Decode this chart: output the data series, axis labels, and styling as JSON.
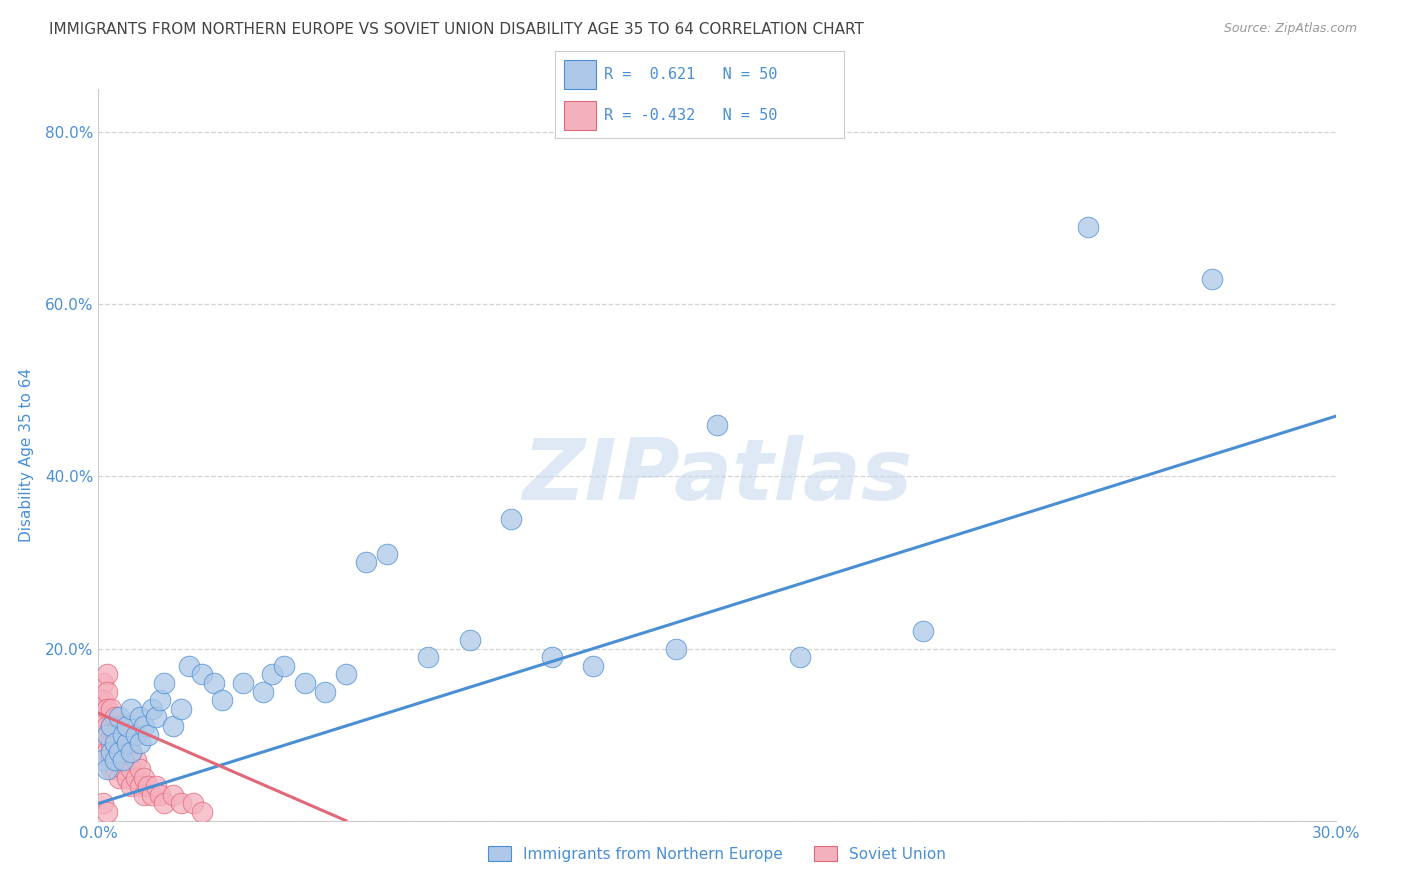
{
  "title": "IMMIGRANTS FROM NORTHERN EUROPE VS SOVIET UNION DISABILITY AGE 35 TO 64 CORRELATION CHART",
  "source": "Source: ZipAtlas.com",
  "ylabel": "Disability Age 35 to 64",
  "xlim": [
    0.0,
    0.3
  ],
  "ylim": [
    0.0,
    0.85
  ],
  "x_ticks": [
    0.0,
    0.05,
    0.1,
    0.15,
    0.2,
    0.25,
    0.3
  ],
  "y_ticks": [
    0.0,
    0.2,
    0.4,
    0.6,
    0.8
  ],
  "r_blue": 0.621,
  "n_blue": 50,
  "r_pink": -0.432,
  "n_pink": 50,
  "blue_color": "#adc8e8",
  "pink_color": "#f5b0be",
  "blue_line_color": "#4a8fd4",
  "pink_line_color": "#e06878",
  "title_color": "#444444",
  "axis_label_color": "#4a8fd4",
  "tick_color": "#4a8fd4",
  "grid_color": "#d0d0d0",
  "watermark": "ZIPatlas",
  "blue_line_x0": 0.0,
  "blue_line_y0": 0.02,
  "blue_line_x1": 0.3,
  "blue_line_y1": 0.47,
  "pink_line_x0": 0.0,
  "pink_line_y0": 0.125,
  "pink_line_x1": 0.06,
  "pink_line_y1": 0.0,
  "blue_scatter_x": [
    0.001,
    0.002,
    0.002,
    0.003,
    0.003,
    0.004,
    0.004,
    0.005,
    0.005,
    0.006,
    0.006,
    0.007,
    0.007,
    0.008,
    0.008,
    0.009,
    0.01,
    0.01,
    0.011,
    0.012,
    0.013,
    0.014,
    0.015,
    0.016,
    0.018,
    0.02,
    0.022,
    0.025,
    0.028,
    0.03,
    0.035,
    0.04,
    0.042,
    0.045,
    0.05,
    0.055,
    0.06,
    0.065,
    0.07,
    0.08,
    0.09,
    0.1,
    0.11,
    0.12,
    0.14,
    0.15,
    0.17,
    0.2,
    0.24,
    0.27
  ],
  "blue_scatter_y": [
    0.07,
    0.06,
    0.1,
    0.08,
    0.11,
    0.07,
    0.09,
    0.08,
    0.12,
    0.07,
    0.1,
    0.09,
    0.11,
    0.08,
    0.13,
    0.1,
    0.09,
    0.12,
    0.11,
    0.1,
    0.13,
    0.12,
    0.14,
    0.16,
    0.11,
    0.13,
    0.18,
    0.17,
    0.16,
    0.14,
    0.16,
    0.15,
    0.17,
    0.18,
    0.16,
    0.15,
    0.17,
    0.3,
    0.31,
    0.19,
    0.21,
    0.35,
    0.19,
    0.18,
    0.2,
    0.46,
    0.19,
    0.22,
    0.69,
    0.63
  ],
  "pink_scatter_x": [
    0.0005,
    0.001,
    0.001,
    0.001,
    0.001,
    0.002,
    0.002,
    0.002,
    0.002,
    0.002,
    0.002,
    0.003,
    0.003,
    0.003,
    0.003,
    0.003,
    0.004,
    0.004,
    0.004,
    0.004,
    0.005,
    0.005,
    0.005,
    0.005,
    0.006,
    0.006,
    0.006,
    0.007,
    0.007,
    0.007,
    0.008,
    0.008,
    0.008,
    0.009,
    0.009,
    0.01,
    0.01,
    0.011,
    0.011,
    0.012,
    0.013,
    0.014,
    0.015,
    0.016,
    0.018,
    0.02,
    0.023,
    0.025,
    0.001,
    0.002
  ],
  "pink_scatter_y": [
    0.14,
    0.16,
    0.14,
    0.12,
    0.1,
    0.17,
    0.15,
    0.13,
    0.11,
    0.09,
    0.08,
    0.13,
    0.11,
    0.09,
    0.07,
    0.06,
    0.12,
    0.1,
    0.08,
    0.06,
    0.11,
    0.09,
    0.07,
    0.05,
    0.1,
    0.08,
    0.06,
    0.09,
    0.07,
    0.05,
    0.08,
    0.06,
    0.04,
    0.07,
    0.05,
    0.06,
    0.04,
    0.05,
    0.03,
    0.04,
    0.03,
    0.04,
    0.03,
    0.02,
    0.03,
    0.02,
    0.02,
    0.01,
    0.02,
    0.01
  ]
}
